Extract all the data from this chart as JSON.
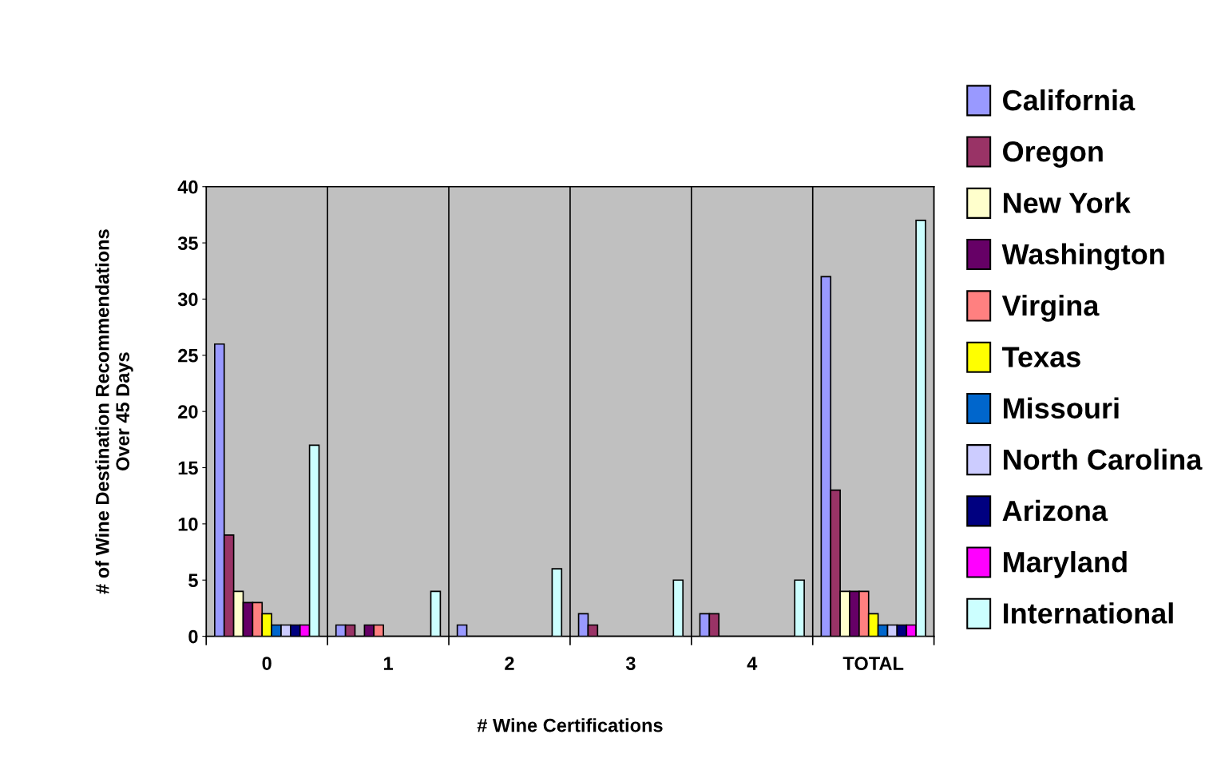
{
  "chart_data": {
    "type": "bar",
    "xlabel": "# Wine Certifications",
    "ylabel": "# of Wine Destination Recommendations\nOver 45 Days",
    "categories": [
      "0",
      "1",
      "2",
      "3",
      "4",
      "TOTAL"
    ],
    "series": [
      {
        "name": "California",
        "color": "#9999ff",
        "values": [
          26,
          1,
          1,
          2,
          2,
          32
        ]
      },
      {
        "name": "Oregon",
        "color": "#993366",
        "values": [
          9,
          1,
          0,
          1,
          2,
          13
        ]
      },
      {
        "name": "New York",
        "color": "#ffffcc",
        "values": [
          4,
          0,
          0,
          0,
          0,
          4
        ]
      },
      {
        "name": "Washington",
        "color": "#660066",
        "values": [
          3,
          1,
          0,
          0,
          0,
          4
        ]
      },
      {
        "name": "Virgina",
        "color": "#ff8080",
        "values": [
          3,
          1,
          0,
          0,
          0,
          4
        ]
      },
      {
        "name": "Texas",
        "color": "#ffff00",
        "values": [
          2,
          0,
          0,
          0,
          0,
          2
        ]
      },
      {
        "name": "Missouri",
        "color": "#0066cc",
        "values": [
          1,
          0,
          0,
          0,
          0,
          1
        ]
      },
      {
        "name": "North Carolina",
        "color": "#ccccff",
        "values": [
          1,
          0,
          0,
          0,
          0,
          1
        ]
      },
      {
        "name": "Arizona",
        "color": "#000080",
        "values": [
          1,
          0,
          0,
          0,
          0,
          1
        ]
      },
      {
        "name": "Maryland",
        "color": "#ff00ff",
        "values": [
          1,
          0,
          0,
          0,
          0,
          1
        ]
      },
      {
        "name": "International",
        "color": "#ccffff",
        "values": [
          17,
          4,
          6,
          5,
          5,
          37
        ]
      }
    ],
    "ylim": [
      0,
      40
    ],
    "yticks": [
      0,
      5,
      10,
      15,
      20,
      25,
      30,
      35,
      40
    ],
    "grid": "x",
    "legend": "right"
  }
}
